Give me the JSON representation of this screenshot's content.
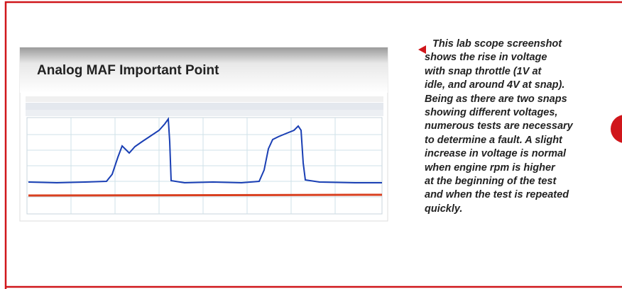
{
  "slide": {
    "title": "Analog MAF Important Point"
  },
  "caption": {
    "lines": [
      "This lab scope screenshot",
      "shows the rise in voltage",
      "with snap throttle (1V at",
      "idle, and around 4V at snap).",
      "Being as there are two snaps",
      "showing different voltages,",
      "numerous tests are necessary",
      "to determine a fault. A slight",
      "increase in voltage is normal",
      "when engine rpm is higher",
      "at the beginning of the test",
      "and when the test is repeated",
      "quickly."
    ]
  }
}
